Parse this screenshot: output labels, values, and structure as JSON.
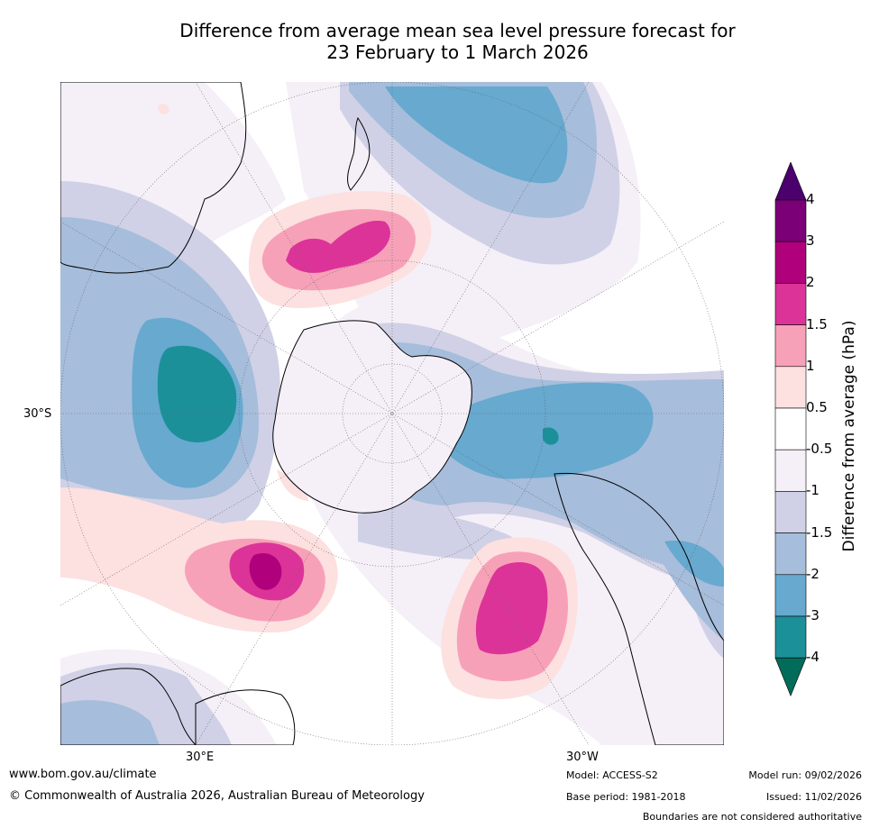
{
  "title": {
    "line1": "Difference from average mean sea level pressure forecast for",
    "line2": "23 February to 1 March 2026"
  },
  "map": {
    "projection": "south-polar-stereographic",
    "latitude_label": "30°S",
    "longitude_labels": {
      "east": "30°E",
      "west": "30°W"
    }
  },
  "colorbar": {
    "title": "Difference from average (hPa)",
    "tick_labels": [
      "4",
      "3",
      "2",
      "1.5",
      "1",
      "0.5",
      "-0.5",
      "-1",
      "-1.5",
      "-2",
      "-3",
      "-4"
    ],
    "bands_top_to_bottom": [
      {
        "range": ">4",
        "color": "#4b006e"
      },
      {
        "range": "3 to 4",
        "color": "#7b0077"
      },
      {
        "range": "2 to 3",
        "color": "#b0007b"
      },
      {
        "range": "1.5 to 2",
        "color": "#dc3399"
      },
      {
        "range": "1 to 1.5",
        "color": "#f7a1b8"
      },
      {
        "range": "0.5 to 1",
        "color": "#fde0e0"
      },
      {
        "range": "-0.5 to 0.5",
        "color": "#ffffff"
      },
      {
        "range": "-1 to -0.5",
        "color": "#f5eff7"
      },
      {
        "range": "-1.5 to -1",
        "color": "#d0d1e6"
      },
      {
        "range": "-2 to -1.5",
        "color": "#a6bddb"
      },
      {
        "range": "-3 to -2",
        "color": "#67a9cf"
      },
      {
        "range": "-4 to -3",
        "color": "#1c9099"
      },
      {
        "range": "<-4",
        "color": "#016c59"
      }
    ]
  },
  "footer": {
    "website": "www.bom.gov.au/climate",
    "copyright": "© Commonwealth of Australia 2026, Australian Bureau of Meteorology",
    "model": "Model: ACCESS-S2",
    "base_period": "Base period: 1981-2018",
    "model_run": "Model run: 09/02/2026",
    "issued": "Issued: 11/02/2026",
    "disclaimer": "Boundaries are not considered authoritative"
  }
}
